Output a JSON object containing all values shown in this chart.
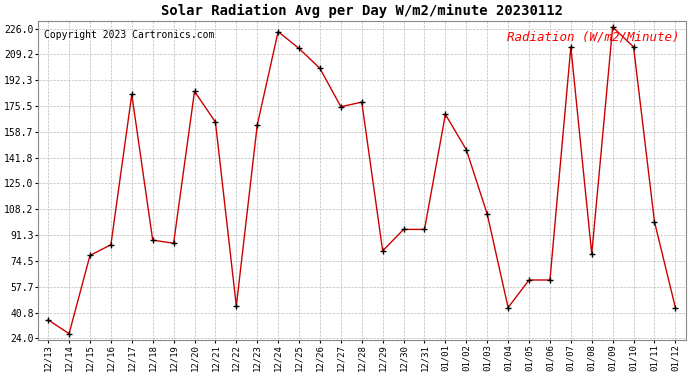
{
  "title": "Solar Radiation Avg per Day W/m2/minute 20230112",
  "copyright": "Copyright 2023 Cartronics.com",
  "legend_label": "Radiation (W/m2/Minute)",
  "x_labels": [
    "12/13",
    "12/14",
    "12/15",
    "12/16",
    "12/17",
    "12/18",
    "12/19",
    "12/20",
    "12/21",
    "12/22",
    "12/23",
    "12/24",
    "12/25",
    "12/26",
    "12/27",
    "12/28",
    "12/29",
    "12/30",
    "12/31",
    "01/01",
    "01/02",
    "01/03",
    "01/04",
    "01/05",
    "01/06",
    "01/07",
    "01/08",
    "01/09",
    "01/10",
    "01/11",
    "01/12"
  ],
  "values": [
    36,
    27,
    78,
    85,
    183,
    88,
    86,
    185,
    165,
    45,
    163,
    224,
    213,
    200,
    175,
    178,
    81,
    95,
    95,
    170,
    147,
    105,
    44,
    62,
    62,
    214,
    79,
    227,
    214,
    100,
    44
  ],
  "line_color": "#cc0000",
  "marker_color": "#000000",
  "bg_color": "#ffffff",
  "grid_color": "#bbbbbb",
  "title_fontsize": 10,
  "copyright_fontsize": 7,
  "legend_fontsize": 9,
  "ytick_values": [
    24.0,
    40.8,
    57.7,
    74.5,
    91.3,
    108.2,
    125.0,
    141.8,
    158.7,
    175.5,
    192.3,
    209.2,
    226.0
  ],
  "ymin": 24.0,
  "ymax": 226.0
}
